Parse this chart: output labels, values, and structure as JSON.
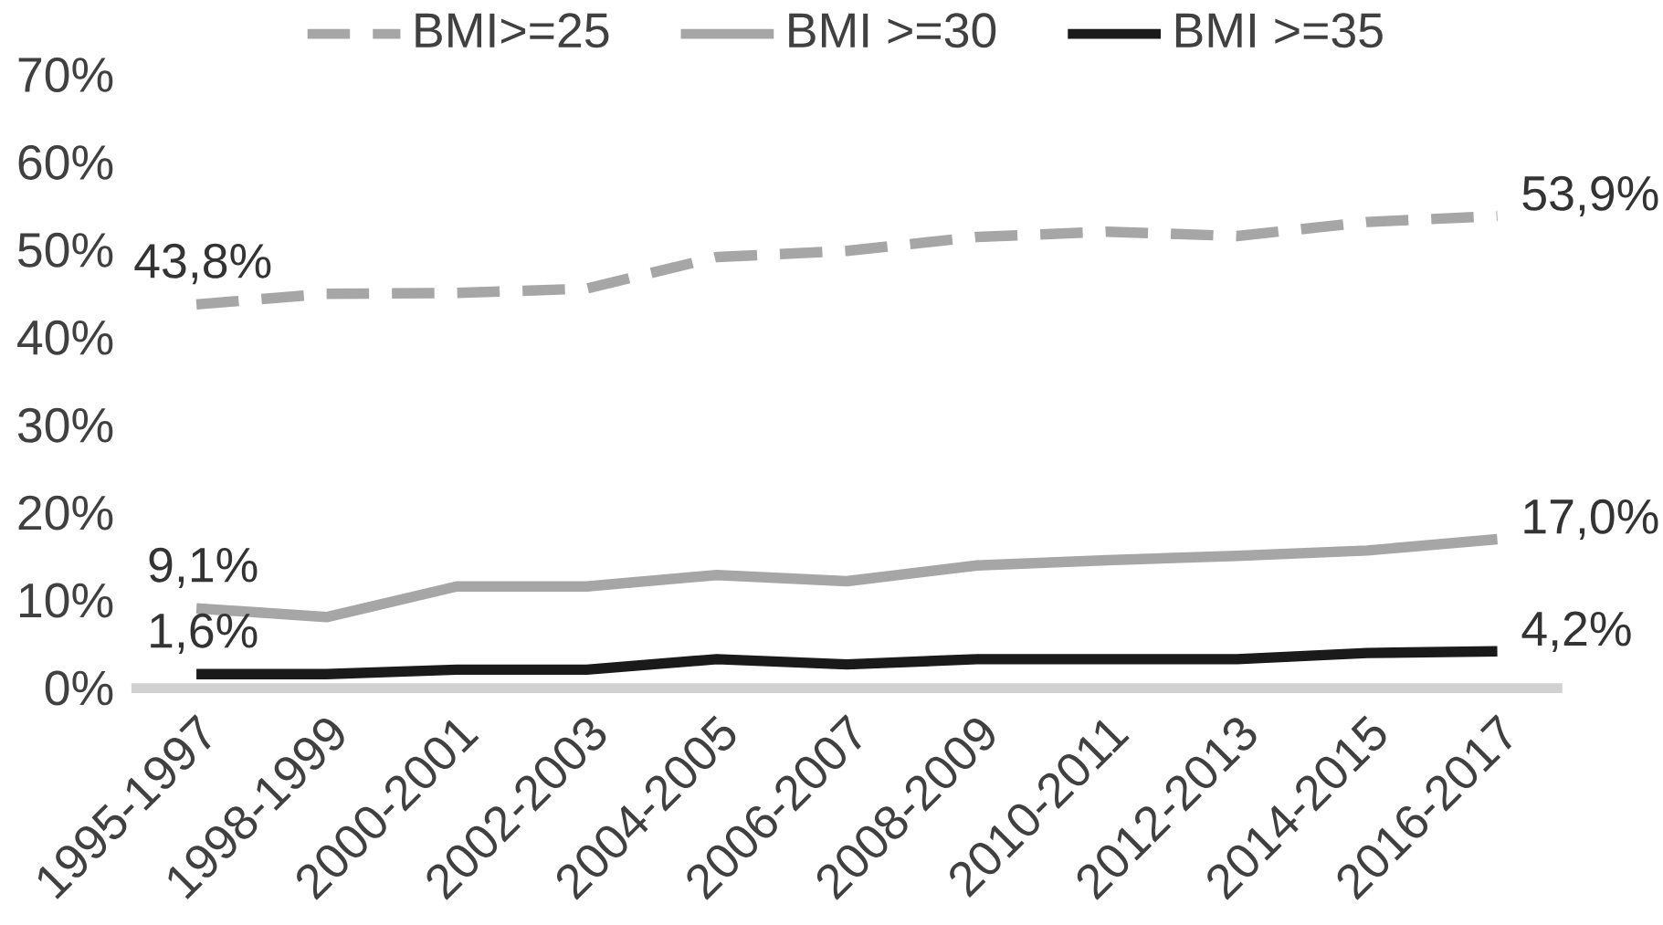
{
  "chart_data": {
    "type": "line",
    "categories": [
      "1995-1997",
      "1998-1999",
      "2000-2001",
      "2002-2003",
      "2004-2005",
      "2006-2007",
      "2008-2009",
      "2010-2011",
      "2012-2013",
      "2014-2015",
      "2016-2017"
    ],
    "series": [
      {
        "name": "BMI>=25",
        "color": "#a6a6a6",
        "line_style": "dashed",
        "values": [
          43.8,
          45.0,
          45.1,
          45.6,
          49.2,
          49.9,
          51.5,
          52.1,
          51.6,
          53.2,
          53.9
        ],
        "value_labels": [
          "43,8%",
          null,
          null,
          null,
          null,
          null,
          null,
          null,
          null,
          null,
          "53,9%"
        ]
      },
      {
        "name": "BMI >=30",
        "color": "#a6a6a6",
        "line_style": "solid",
        "values": [
          9.1,
          8.1,
          11.6,
          11.6,
          12.9,
          12.2,
          14.0,
          14.6,
          15.1,
          15.7,
          17.0
        ],
        "value_labels": [
          "9,1%",
          null,
          null,
          null,
          null,
          null,
          null,
          null,
          null,
          null,
          "17,0%"
        ]
      },
      {
        "name": "BMI >=35",
        "color": "#1a1a1a",
        "line_style": "solid",
        "values": [
          1.6,
          1.6,
          2.1,
          2.1,
          3.3,
          2.7,
          3.3,
          3.3,
          3.3,
          4.0,
          4.2
        ],
        "value_labels": [
          "1,6%",
          null,
          null,
          null,
          null,
          null,
          null,
          null,
          null,
          null,
          "4,2%"
        ]
      }
    ],
    "ylim": [
      0,
      70
    ],
    "yticks": [
      {
        "value": 0,
        "label": "0%"
      },
      {
        "value": 10,
        "label": "10%"
      },
      {
        "value": 20,
        "label": "20%"
      },
      {
        "value": 30,
        "label": "30%"
      },
      {
        "value": 40,
        "label": "40%"
      },
      {
        "value": 50,
        "label": "50%"
      },
      {
        "value": 60,
        "label": "60%"
      },
      {
        "value": 70,
        "label": "70%"
      }
    ],
    "grid": false,
    "legend": "top",
    "marker": "none"
  }
}
